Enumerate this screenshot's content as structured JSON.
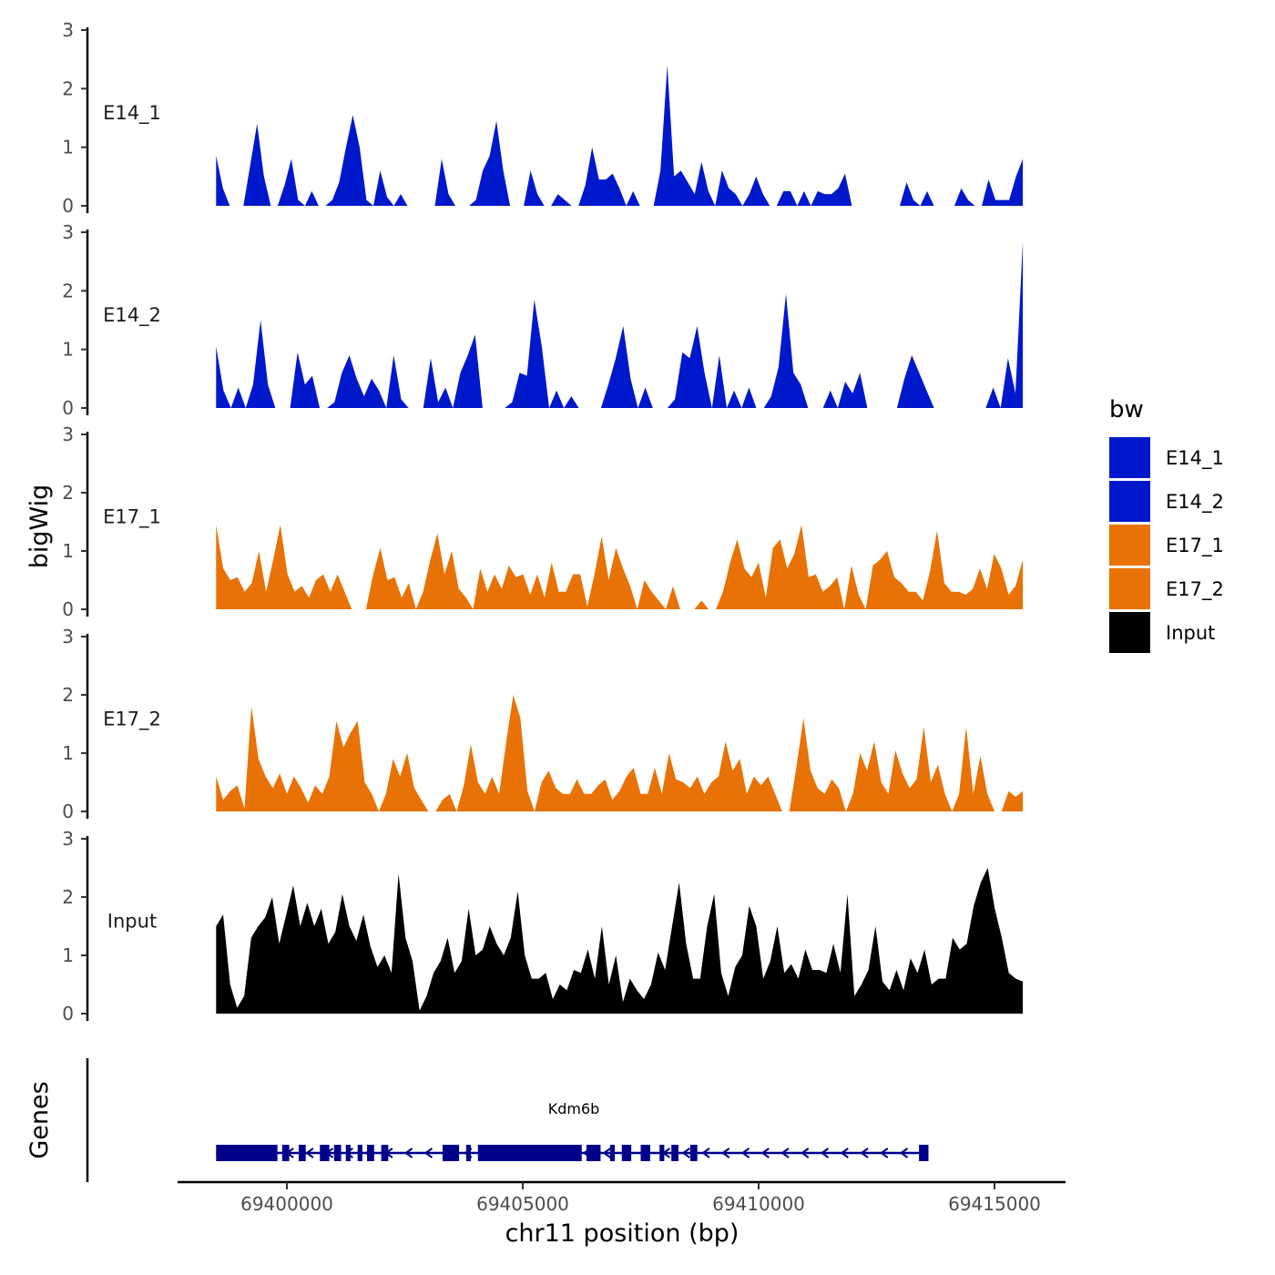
{
  "chart_data": {
    "type": "area",
    "ylabel": "bigWig",
    "xlabel": "chr11 position (bp)",
    "ylim": [
      0,
      3
    ],
    "yticks": [
      "0",
      "1",
      "2",
      "3"
    ],
    "xlim": [
      69396900,
      69415700
    ],
    "xticks": [
      69400000,
      69405000,
      69410000,
      69415000
    ],
    "xtick_labels": [
      "69400000",
      "69405000",
      "69410000",
      "69415000"
    ],
    "x_start": 69398500,
    "x_end": 69415600,
    "legend": {
      "title": "bw",
      "placement": "right",
      "entries": [
        {
          "label": "E14_1",
          "color": "#0018cc"
        },
        {
          "label": "E14_2",
          "color": "#0018cc"
        },
        {
          "label": "E17_1",
          "color": "#e87205"
        },
        {
          "label": "E17_2",
          "color": "#e87205"
        },
        {
          "label": "Input",
          "color": "#000000"
        }
      ]
    },
    "series": [
      {
        "name": "E14_1",
        "color": "#0018cc",
        "values": [
          0.85,
          0.3,
          0,
          0,
          0,
          0.7,
          1.4,
          0.5,
          0,
          0,
          0.35,
          0.8,
          0.1,
          0,
          0.25,
          0,
          0,
          0.1,
          0.4,
          1.0,
          1.55,
          1.0,
          0.1,
          0,
          0.6,
          0.15,
          0,
          0.2,
          0,
          0,
          0,
          0,
          0,
          0.8,
          0.2,
          0,
          0,
          0,
          0.1,
          0.6,
          0.85,
          1.45,
          0.6,
          0,
          0,
          0,
          0.6,
          0.2,
          0,
          0,
          0.2,
          0.1,
          0,
          0,
          0.35,
          1.0,
          0.45,
          0.45,
          0.55,
          0.3,
          0,
          0.25,
          0,
          0,
          0,
          0.6,
          2.4,
          0.5,
          0.6,
          0.4,
          0.2,
          0.75,
          0.25,
          0,
          0.6,
          0.3,
          0.2,
          0,
          0.2,
          0.5,
          0.2,
          0,
          0,
          0.25,
          0.25,
          0,
          0.25,
          0,
          0.25,
          0.2,
          0.2,
          0.3,
          0.55,
          0,
          0,
          0,
          0,
          0,
          0,
          0,
          0,
          0.4,
          0.1,
          0,
          0.25,
          0,
          0,
          0,
          0,
          0.3,
          0.1,
          0,
          0,
          0.45,
          0.1,
          0.1,
          0.1,
          0.5,
          0.8
        ]
      },
      {
        "name": "E14_2",
        "color": "#0018cc",
        "values": [
          1.05,
          0.3,
          0,
          0.35,
          0,
          0.4,
          1.5,
          0.4,
          0,
          0,
          0,
          0.95,
          0.4,
          0.55,
          0,
          0,
          0.1,
          0.6,
          0.9,
          0.5,
          0.2,
          0.5,
          0.3,
          0,
          0.9,
          0.15,
          0,
          0,
          0,
          0.85,
          0.1,
          0.35,
          0,
          0.6,
          0.9,
          1.25,
          0,
          0,
          0,
          0,
          0.1,
          0.6,
          0.55,
          1.85,
          1.05,
          0,
          0.3,
          0,
          0.2,
          0,
          0,
          0,
          0,
          0.4,
          0.85,
          1.4,
          0.5,
          0,
          0.35,
          0,
          0,
          0,
          0.15,
          0.95,
          0.85,
          1.4,
          0.6,
          0,
          0.9,
          0,
          0.3,
          0,
          0.35,
          0,
          0,
          0.2,
          0.7,
          1.95,
          0.6,
          0.4,
          0,
          0,
          0,
          0.3,
          0,
          0.45,
          0.25,
          0.6,
          0,
          0,
          0,
          0,
          0,
          0.5,
          0.9,
          0.6,
          0.3,
          0,
          0,
          0,
          0,
          0,
          0,
          0,
          0,
          0.35,
          0,
          0.85,
          0.25,
          2.85
        ]
      },
      {
        "name": "E17_1",
        "color": "#e87205",
        "values": [
          1.45,
          0.7,
          0.5,
          0.55,
          0.3,
          0.45,
          1.0,
          0.3,
          0.85,
          1.45,
          0.6,
          0.3,
          0.4,
          0.2,
          0.5,
          0.6,
          0.3,
          0.6,
          0.3,
          0,
          0,
          0,
          0.6,
          1.05,
          0.5,
          0.55,
          0.2,
          0.45,
          0,
          0.3,
          0.85,
          1.3,
          0.6,
          1.0,
          0.35,
          0.2,
          0,
          0.7,
          0.3,
          0.6,
          0.35,
          0.75,
          0.55,
          0.6,
          0.25,
          0.6,
          0.2,
          0.8,
          0.3,
          0.3,
          0.6,
          0.6,
          0.05,
          0.6,
          1.25,
          0.5,
          1.05,
          0.7,
          0.4,
          0,
          0.5,
          0.3,
          0.15,
          0,
          0.4,
          0,
          0,
          0,
          0.15,
          0,
          0,
          0.3,
          0.8,
          1.2,
          0.7,
          0.55,
          0.8,
          0.2,
          1.05,
          1.2,
          0.7,
          0.95,
          1.45,
          0.55,
          0.6,
          0.3,
          0.4,
          0.55,
          0,
          0.75,
          0.25,
          0,
          0.75,
          0.85,
          1.0,
          0.55,
          0.45,
          0.3,
          0.3,
          0.15,
          0.65,
          1.35,
          0.45,
          0.3,
          0.3,
          0.25,
          0.35,
          0.7,
          0.35,
          0.95,
          0.7,
          0.25,
          0.4,
          0.85
        ]
      },
      {
        "name": "E17_2",
        "color": "#e87205",
        "values": [
          0.6,
          0.2,
          0.35,
          0.45,
          0.05,
          1.8,
          0.9,
          0.6,
          0.4,
          0.65,
          0.3,
          0.6,
          0.4,
          0.15,
          0.45,
          0.3,
          0.6,
          1.55,
          1.1,
          1.35,
          1.55,
          0.5,
          0.3,
          0,
          0.3,
          0.9,
          0.6,
          1.0,
          0.4,
          0.2,
          0,
          0,
          0.2,
          0.3,
          0,
          0.45,
          1.15,
          0.5,
          0.3,
          0.6,
          0.3,
          1.2,
          2.0,
          1.6,
          0.35,
          0,
          0.5,
          0.7,
          0.4,
          0.3,
          0.3,
          0.55,
          0.3,
          0.3,
          0.45,
          0.55,
          0.2,
          0.35,
          0.6,
          0.75,
          0.3,
          0.3,
          0.75,
          0.3,
          1.0,
          0.55,
          0.5,
          0.4,
          0.6,
          0.3,
          0.5,
          0.6,
          1.2,
          0.7,
          0.9,
          0.3,
          0.6,
          0.45,
          0.6,
          0.3,
          0,
          0,
          0.75,
          1.6,
          0.7,
          0.4,
          0.3,
          0.55,
          0.4,
          0,
          0.3,
          1.0,
          0.7,
          1.2,
          0.5,
          0.3,
          1.05,
          0.65,
          0.4,
          0.55,
          1.45,
          0.5,
          0.8,
          0.3,
          0,
          0.3,
          1.45,
          0.3,
          0.95,
          0.3,
          0,
          0,
          0.35,
          0.25,
          0.35
        ]
      },
      {
        "name": "Input",
        "color": "#000000",
        "values": [
          1.5,
          1.7,
          0.5,
          0.1,
          0.3,
          1.3,
          1.5,
          1.65,
          2.0,
          1.2,
          1.7,
          2.2,
          1.5,
          1.9,
          1.5,
          1.8,
          1.2,
          1.4,
          2.05,
          1.5,
          1.25,
          1.7,
          1.15,
          0.8,
          1.0,
          0.7,
          2.4,
          1.3,
          0.9,
          0.05,
          0.3,
          0.7,
          0.9,
          1.3,
          0.7,
          0.9,
          1.8,
          1.0,
          1.1,
          1.5,
          1.2,
          1.0,
          1.3,
          2.1,
          1.0,
          0.6,
          0.6,
          0.7,
          0.25,
          0.5,
          0.4,
          0.75,
          0.7,
          1.1,
          0.6,
          1.5,
          0.5,
          1.0,
          0.2,
          0.6,
          0.4,
          0.25,
          0.5,
          1.05,
          0.75,
          1.5,
          2.25,
          1.2,
          0.6,
          0.6,
          1.5,
          2.05,
          0.7,
          0.3,
          0.8,
          1.0,
          1.85,
          1.5,
          0.6,
          0.9,
          1.5,
          0.7,
          0.85,
          0.6,
          1.1,
          0.75,
          0.75,
          0.7,
          1.2,
          0.7,
          2.05,
          0.3,
          0.5,
          0.75,
          1.5,
          0.55,
          0.4,
          0.75,
          0.4,
          0.95,
          0.7,
          1.1,
          0.5,
          0.6,
          0.6,
          1.3,
          1.1,
          1.2,
          1.85,
          2.25,
          2.5,
          1.8,
          1.3,
          0.7,
          0.6,
          0.55
        ]
      }
    ],
    "genes": {
      "name": "Kdm6b",
      "start": 69398500,
      "end": 69413600,
      "strand": "-",
      "color": "#00008b",
      "exons": [
        [
          69398500,
          69399800
        ],
        [
          69399900,
          69400050
        ],
        [
          69400250,
          69400400
        ],
        [
          69400700,
          69400900
        ],
        [
          69401000,
          69401150
        ],
        [
          69401250,
          69401350
        ],
        [
          69401500,
          69401600
        ],
        [
          69401700,
          69401850
        ],
        [
          69402000,
          69402150
        ],
        [
          69403300,
          69403650
        ],
        [
          69403800,
          69403900
        ],
        [
          69404050,
          69406250
        ],
        [
          69406350,
          69406650
        ],
        [
          69406850,
          69406950
        ],
        [
          69407100,
          69407300
        ],
        [
          69407500,
          69407700
        ],
        [
          69407900,
          69408000
        ],
        [
          69408150,
          69408300
        ],
        [
          69408550,
          69408700
        ],
        [
          69413400,
          69413600
        ]
      ]
    },
    "genes_label": "Genes"
  }
}
